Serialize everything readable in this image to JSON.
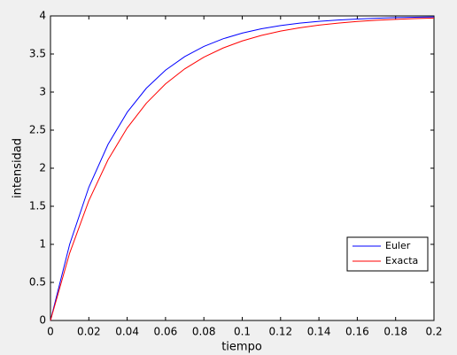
{
  "chart_data": {
    "type": "line",
    "x_label": "tiempo",
    "y_label": "intensidad",
    "x": [
      0,
      0.01,
      0.02,
      0.03,
      0.04,
      0.05,
      0.06,
      0.07,
      0.08,
      0.09,
      0.1,
      0.11,
      0.12,
      0.13,
      0.14,
      0.15,
      0.16,
      0.17,
      0.18,
      0.19,
      0.2
    ],
    "series": [
      {
        "name": "Euler",
        "color": "#0000ff",
        "values": [
          0,
          1,
          1.75,
          2.3125,
          2.7344,
          3.0508,
          3.2881,
          3.4661,
          3.5996,
          3.6997,
          3.7748,
          3.8311,
          3.8733,
          3.905,
          3.9288,
          3.9466,
          3.9599,
          3.97,
          3.9775,
          3.9831,
          3.9873
        ]
      },
      {
        "name": "Exacta",
        "color": "#ff0000",
        "values": [
          0,
          0.8848,
          1.5739,
          2.1106,
          2.5285,
          2.854,
          3.1075,
          3.3049,
          3.4587,
          3.5784,
          3.6717,
          3.7443,
          3.8009,
          3.845,
          3.8793,
          3.906,
          3.9267,
          3.9429,
          3.9556,
          3.9654,
          3.973
        ]
      }
    ],
    "xlim": [
      0,
      0.2
    ],
    "xticks": [
      0,
      0.02,
      0.04,
      0.06,
      0.08,
      0.1,
      0.12,
      0.14,
      0.16,
      0.18,
      0.2
    ],
    "ylim": [
      0,
      4
    ],
    "yticks": [
      0,
      0.5,
      1,
      1.5,
      2,
      2.5,
      3,
      3.5,
      4
    ],
    "legend": "east",
    "grid": false
  }
}
